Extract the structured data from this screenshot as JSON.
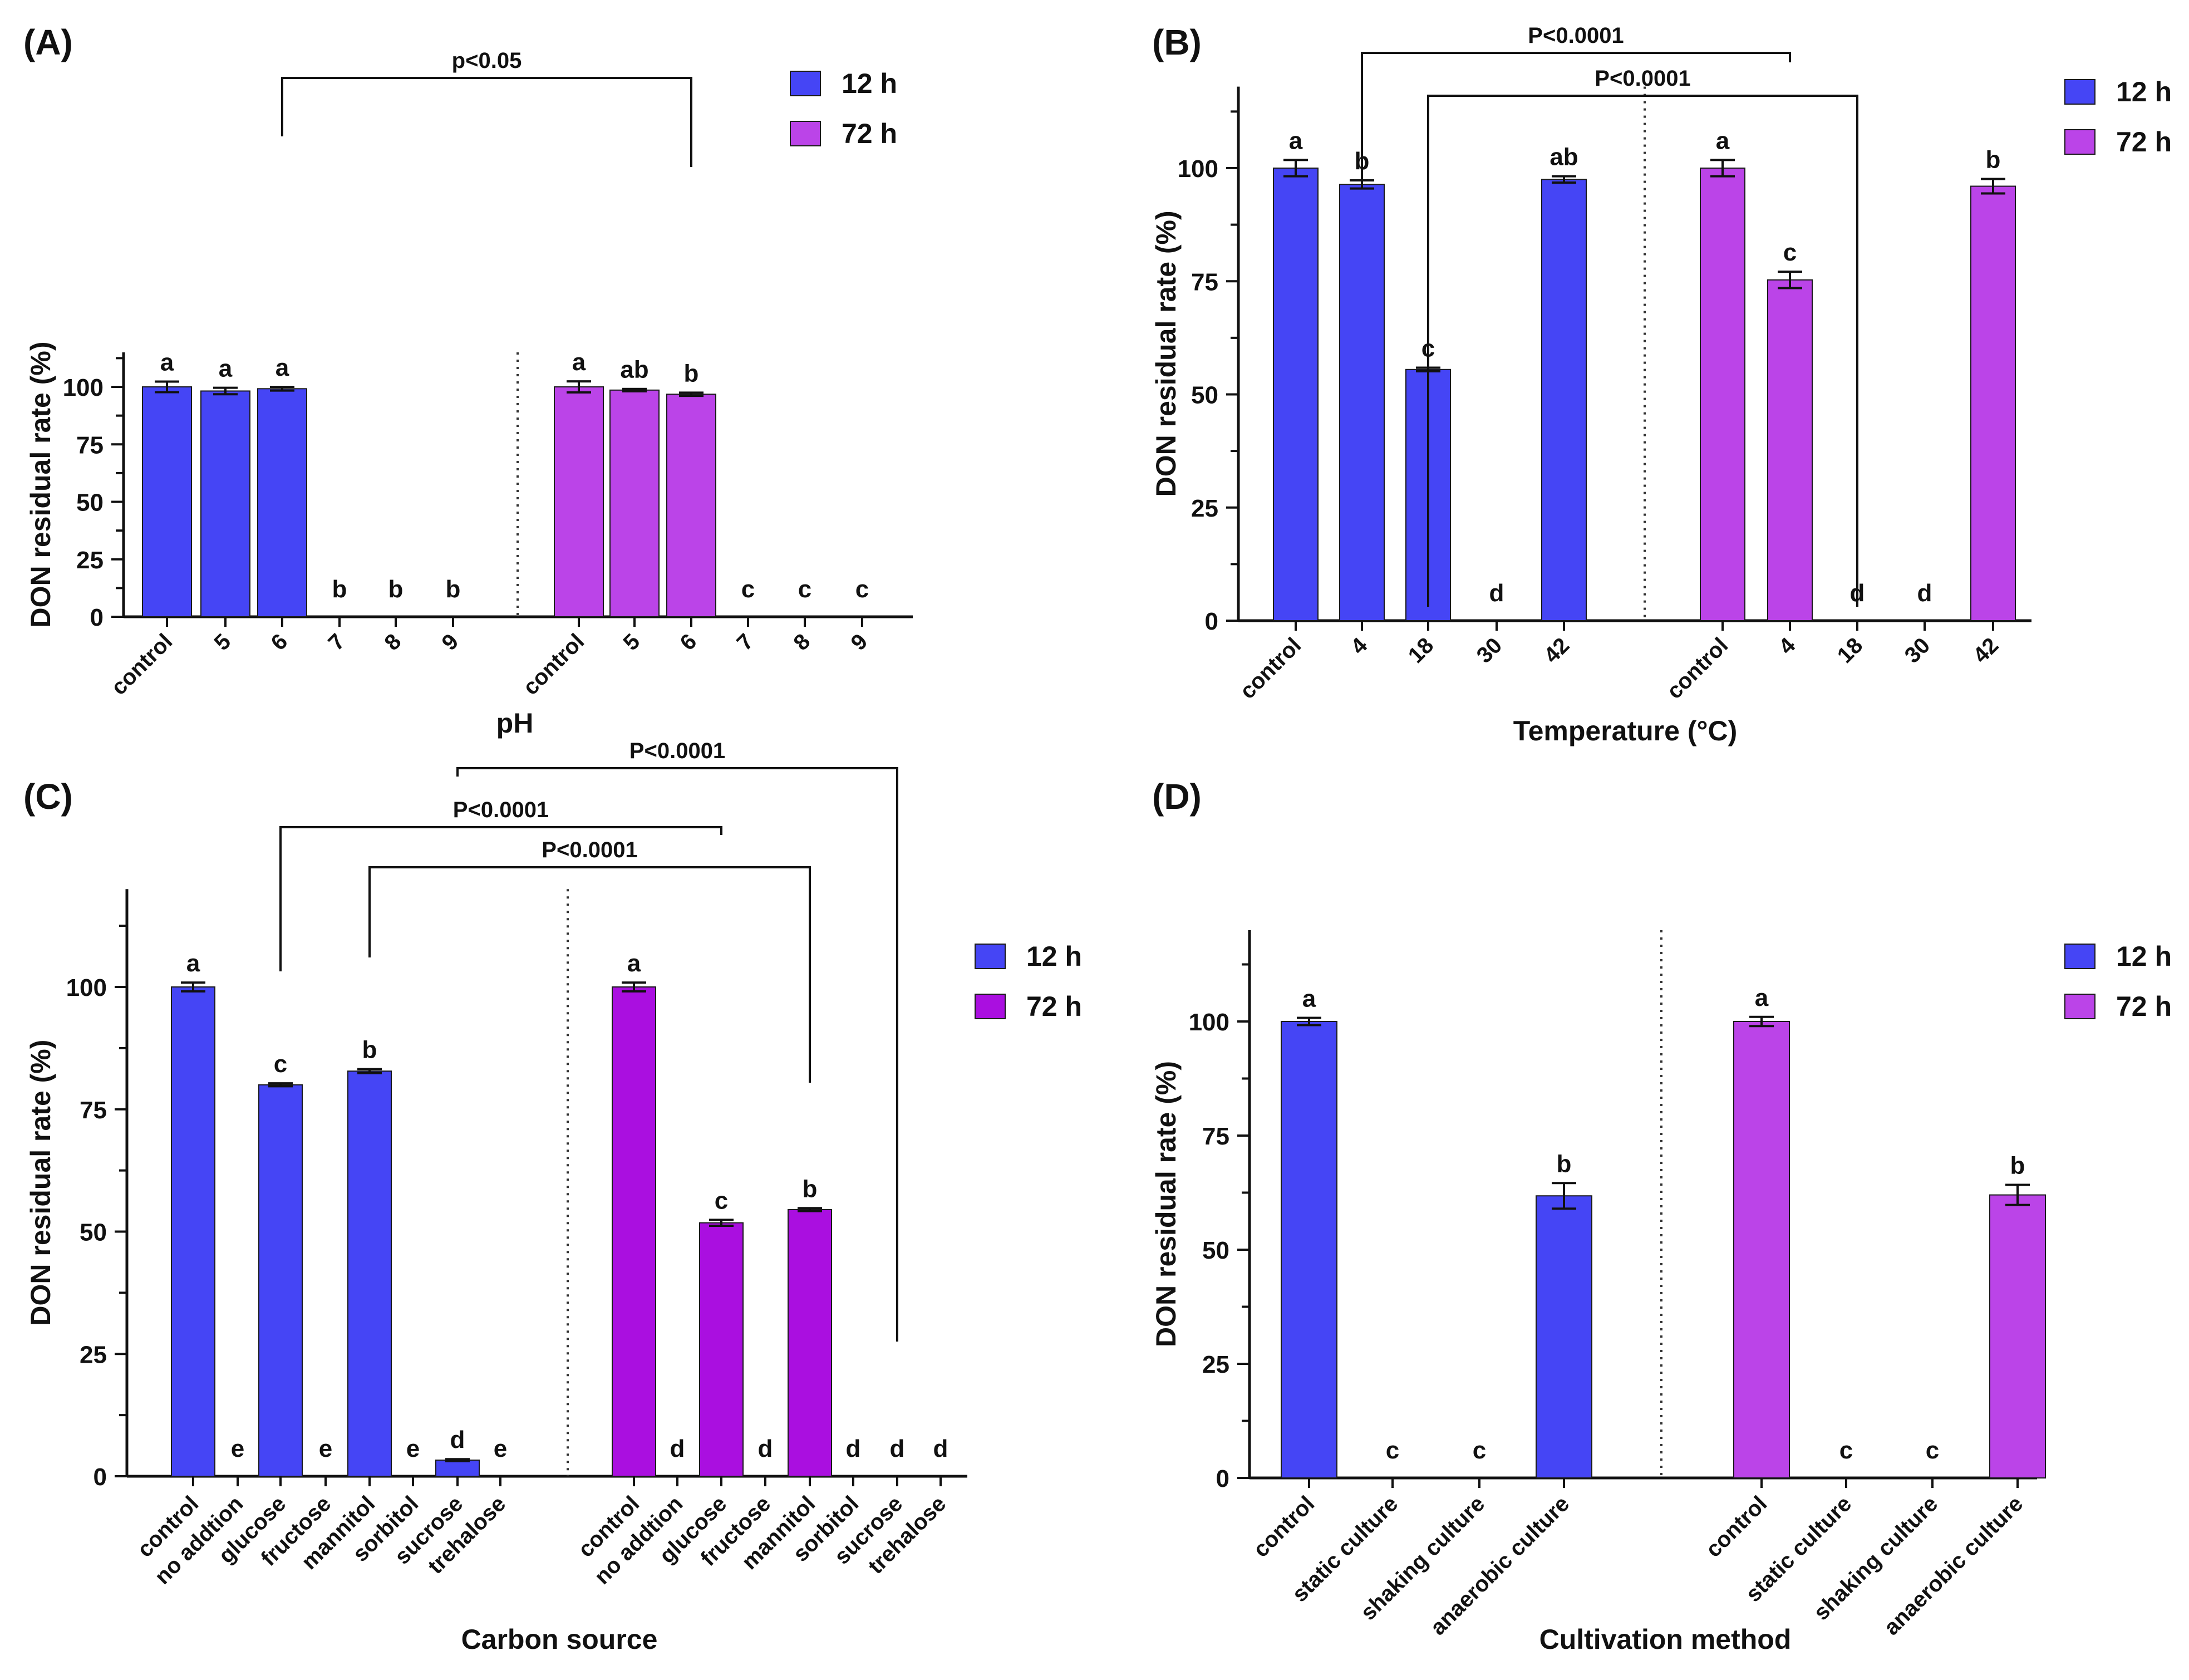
{
  "colors": {
    "series_12h": "#4545F5",
    "series_72h": "#BB44E8",
    "series_72h_c": "#AA0FE0",
    "axis": "#111111"
  },
  "chart_data": [
    {
      "id": "A",
      "panel_label": "(A)",
      "type": "bar",
      "xlabel": "pH",
      "ylabel": "DON residual rate (%)",
      "ylim": [
        0,
        115
      ],
      "yticks": [
        "0",
        "25",
        "50",
        "75",
        "100"
      ],
      "legend": {
        "position": "top-right",
        "entries": [
          "12 h",
          "72 h"
        ]
      },
      "groups": [
        {
          "series": "12 h",
          "color_key": "series_12h",
          "categories": [
            "control",
            "5",
            "6",
            "7",
            "8",
            "9"
          ],
          "values": [
            100,
            98.2,
            99.2,
            0,
            0,
            0
          ],
          "errors": [
            2.3,
            1.4,
            0.8,
            0,
            0,
            0
          ],
          "letters": [
            "a",
            "a",
            "a",
            "b",
            "b",
            "b"
          ]
        },
        {
          "series": "72 h",
          "color_key": "series_72h",
          "categories": [
            "control",
            "5",
            "6",
            "7",
            "8",
            "9"
          ],
          "values": [
            100,
            98.6,
            96.8,
            0,
            0,
            0
          ],
          "errors": [
            2.4,
            0.5,
            0.7,
            0,
            0,
            0
          ],
          "letters": [
            "a",
            "ab",
            "b",
            "c",
            "c",
            "c"
          ]
        }
      ],
      "brackets": [
        {
          "label": "p<0.05",
          "from": [
            0,
            2
          ],
          "to": [
            1,
            2
          ]
        }
      ]
    },
    {
      "id": "B",
      "panel_label": "(B)",
      "type": "bar",
      "xlabel": "Temperature (°C)",
      "ylabel": "DON residual rate (%)",
      "ylim": [
        0,
        118
      ],
      "yticks": [
        "0",
        "25",
        "50",
        "75",
        "100"
      ],
      "legend": {
        "position": "top-right",
        "entries": [
          "12 h",
          "72 h"
        ]
      },
      "groups": [
        {
          "series": "12 h",
          "color_key": "series_12h",
          "categories": [
            "control",
            "4",
            "18",
            "30",
            "42"
          ],
          "values": [
            100,
            96.4,
            55.5,
            0,
            97.5
          ],
          "errors": [
            1.8,
            0.9,
            0.4,
            0,
            0.7
          ],
          "letters": [
            "a",
            "b",
            "c",
            "d",
            "ab"
          ]
        },
        {
          "series": "72 h",
          "color_key": "series_72h",
          "categories": [
            "control",
            "4",
            "18",
            "30",
            "42"
          ],
          "values": [
            100,
            75.3,
            0,
            0,
            96.0
          ],
          "errors": [
            1.8,
            1.8,
            0,
            0,
            1.6
          ],
          "letters": [
            "a",
            "c",
            "d",
            "d",
            "b"
          ]
        }
      ],
      "brackets": [
        {
          "label": "P<0.0001",
          "from": [
            0,
            1
          ],
          "to": [
            1,
            1
          ]
        },
        {
          "label": "P<0.0001",
          "from": [
            0,
            2
          ],
          "to": [
            1,
            2
          ]
        }
      ]
    },
    {
      "id": "C",
      "panel_label": "(C)",
      "type": "bar",
      "xlabel": "Carbon source",
      "ylabel": "DON residual rate (%)",
      "ylim": [
        0,
        120
      ],
      "yticks": [
        "0",
        "25",
        "50",
        "75",
        "100"
      ],
      "legend": {
        "position": "top-right",
        "entries": [
          "12 h",
          "72 h"
        ]
      },
      "groups": [
        {
          "series": "12 h",
          "color_key": "series_12h",
          "categories": [
            "control",
            "no addtion",
            "glucose",
            "fructose",
            "mannitol",
            "sorbitol",
            "sucrose",
            "trehalose"
          ],
          "values": [
            100,
            0,
            80,
            0,
            82.8,
            0,
            3.3,
            0
          ],
          "errors": [
            0.9,
            0,
            0.3,
            0,
            0.4,
            0,
            0.2,
            0
          ],
          "letters": [
            "a",
            "e",
            "c",
            "e",
            "b",
            "e",
            "d",
            "e"
          ]
        },
        {
          "series": "72 h",
          "color_key": "series_72h_c",
          "categories": [
            "control",
            "no addtion",
            "glucose",
            "fructose",
            "mannitol",
            "sorbitol",
            "sucrose",
            "trehalose"
          ],
          "values": [
            100,
            0,
            51.8,
            0,
            54.5,
            0,
            0,
            0
          ],
          "errors": [
            0.9,
            0,
            0.6,
            0,
            0.3,
            0,
            0,
            0
          ],
          "letters": [
            "a",
            "d",
            "c",
            "d",
            "b",
            "d",
            "d",
            "d"
          ]
        }
      ],
      "brackets": [
        {
          "label": "P<0.0001",
          "from": [
            0,
            2
          ],
          "to": [
            1,
            2
          ]
        },
        {
          "label": "P<0.0001",
          "from": [
            0,
            4
          ],
          "to": [
            1,
            4
          ]
        },
        {
          "label": "P<0.0001",
          "from": [
            0,
            6
          ],
          "to": [
            1,
            6
          ]
        }
      ]
    },
    {
      "id": "D",
      "panel_label": "(D)",
      "type": "bar",
      "xlabel": "Cultivation method",
      "ylabel": "DON residual rate (%)",
      "ylim": [
        0,
        120
      ],
      "yticks": [
        "0",
        "25",
        "50",
        "75",
        "100"
      ],
      "legend": {
        "position": "top-right",
        "entries": [
          "12 h",
          "72 h"
        ]
      },
      "groups": [
        {
          "series": "12 h",
          "color_key": "series_12h",
          "categories": [
            "control",
            "static culture",
            "shaking culture",
            "anaerobic culture"
          ],
          "values": [
            100,
            0,
            0,
            61.8
          ],
          "errors": [
            0.8,
            0,
            0,
            2.8
          ],
          "letters": [
            "a",
            "c",
            "c",
            "b"
          ]
        },
        {
          "series": "72 h",
          "color_key": "series_72h",
          "categories": [
            "control",
            "static culture",
            "shaking culture",
            "anaerobic culture"
          ],
          "values": [
            100,
            0,
            0,
            62.0
          ],
          "errors": [
            1.0,
            0,
            0,
            2.2
          ],
          "letters": [
            "a",
            "c",
            "c",
            "b"
          ]
        }
      ],
      "brackets": []
    }
  ]
}
